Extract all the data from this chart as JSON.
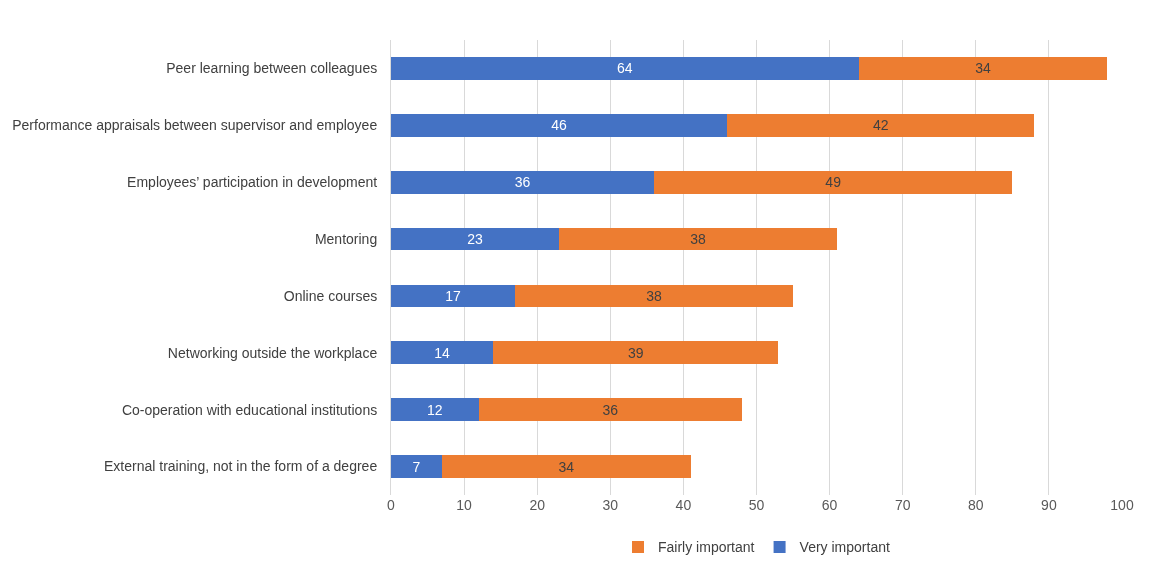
{
  "chart_data": {
    "type": "bar",
    "orientation": "horizontal",
    "stacked": true,
    "data_labels": true,
    "grid": "x",
    "legend": "bottom",
    "categories": [
      "Peer learning between colleagues",
      "Performance appraisals between supervisor and employee",
      "Employees’ participation in development",
      "Mentoring",
      "Online courses",
      "Networking outside the workplace",
      "Co-operation with educational institutions",
      "External training, not in the form of a degree"
    ],
    "series": [
      {
        "name": "Very important",
        "color": "#4472c4",
        "values": [
          64,
          46,
          36,
          23,
          17,
          14,
          12,
          7
        ]
      },
      {
        "name": "Fairly important",
        "color": "#ed7d31",
        "values": [
          34,
          42,
          49,
          38,
          38,
          39,
          36,
          34
        ]
      }
    ],
    "xlim": [
      0,
      100
    ],
    "xticks": [
      0,
      10,
      20,
      30,
      40,
      50,
      60,
      70,
      80,
      90,
      100
    ]
  }
}
